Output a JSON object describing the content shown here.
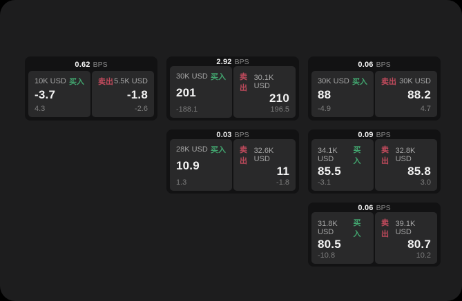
{
  "app": {
    "unit_label": "BPS",
    "buy_label": "买入",
    "sell_label": "卖出",
    "colors": {
      "page_bg": "#1d1d1e",
      "card_bg": "#121213",
      "panel_bg": "#29292a",
      "buy_green": "#42a56f",
      "sell_red": "#c04a5c"
    }
  },
  "cards": [
    {
      "bps": "0.62",
      "unit": "BPS",
      "buy": {
        "amount": "10K USD",
        "side_label": "买入",
        "price": "-3.7",
        "change": "4.3"
      },
      "sell": {
        "side_label": "卖出",
        "amount": "5.5K USD",
        "price": "-1.8",
        "change": "-2.6"
      }
    },
    {
      "bps": "2.92",
      "unit": "BPS",
      "buy": {
        "amount": "30K USD",
        "side_label": "买入",
        "price": "201",
        "change": "-188.1"
      },
      "sell": {
        "side_label": "卖出",
        "amount": "30.1K USD",
        "price": "210",
        "change": "196.5"
      }
    },
    {
      "bps": "0.06",
      "unit": "BPS",
      "buy": {
        "amount": "30K USD",
        "side_label": "买入",
        "price": "88",
        "change": "-4.9"
      },
      "sell": {
        "side_label": "卖出",
        "amount": "30K USD",
        "price": "88.2",
        "change": "4.7"
      }
    },
    {
      "bps": "0.03",
      "unit": "BPS",
      "buy": {
        "amount": "28K USD",
        "side_label": "买入",
        "price": "10.9",
        "change": "1.3"
      },
      "sell": {
        "side_label": "卖出",
        "amount": "32.6K USD",
        "price": "11",
        "change": "-1.8"
      }
    },
    {
      "bps": "0.09",
      "unit": "BPS",
      "buy": {
        "amount": "34.1K USD",
        "side_label": "买入",
        "price": "85.5",
        "change": "-3.1"
      },
      "sell": {
        "side_label": "卖出",
        "amount": "32.8K USD",
        "price": "85.8",
        "change": "3.0"
      }
    },
    {
      "bps": "0.06",
      "unit": "BPS",
      "buy": {
        "amount": "31.8K USD",
        "side_label": "买入",
        "price": "80.5",
        "change": "-10.8"
      },
      "sell": {
        "side_label": "卖出",
        "amount": "39.1K USD",
        "price": "80.7",
        "change": "10.2"
      }
    }
  ]
}
